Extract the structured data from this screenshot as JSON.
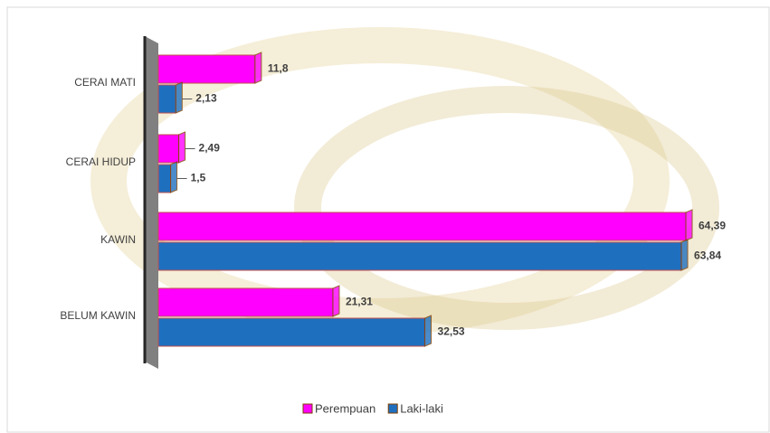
{
  "chart_data": {
    "type": "bar",
    "orientation": "horizontal",
    "categories": [
      "CERAI MATI",
      "CERAI HIDUP",
      "KAWIN",
      "BELUM KAWIN"
    ],
    "series": [
      {
        "name": "Perempuan",
        "color": "#ff00ff",
        "values": [
          11.8,
          2.49,
          64.39,
          21.31
        ],
        "value_labels": [
          "11,8",
          "2,49",
          "64,39",
          "21,31"
        ]
      },
      {
        "name": "Laki-laki",
        "color": "#1f6fbf",
        "values": [
          2.13,
          1.5,
          63.84,
          32.53
        ],
        "value_labels": [
          "2,13",
          "1,5",
          "63,84",
          "32,53"
        ]
      }
    ],
    "legend": "bottom"
  }
}
